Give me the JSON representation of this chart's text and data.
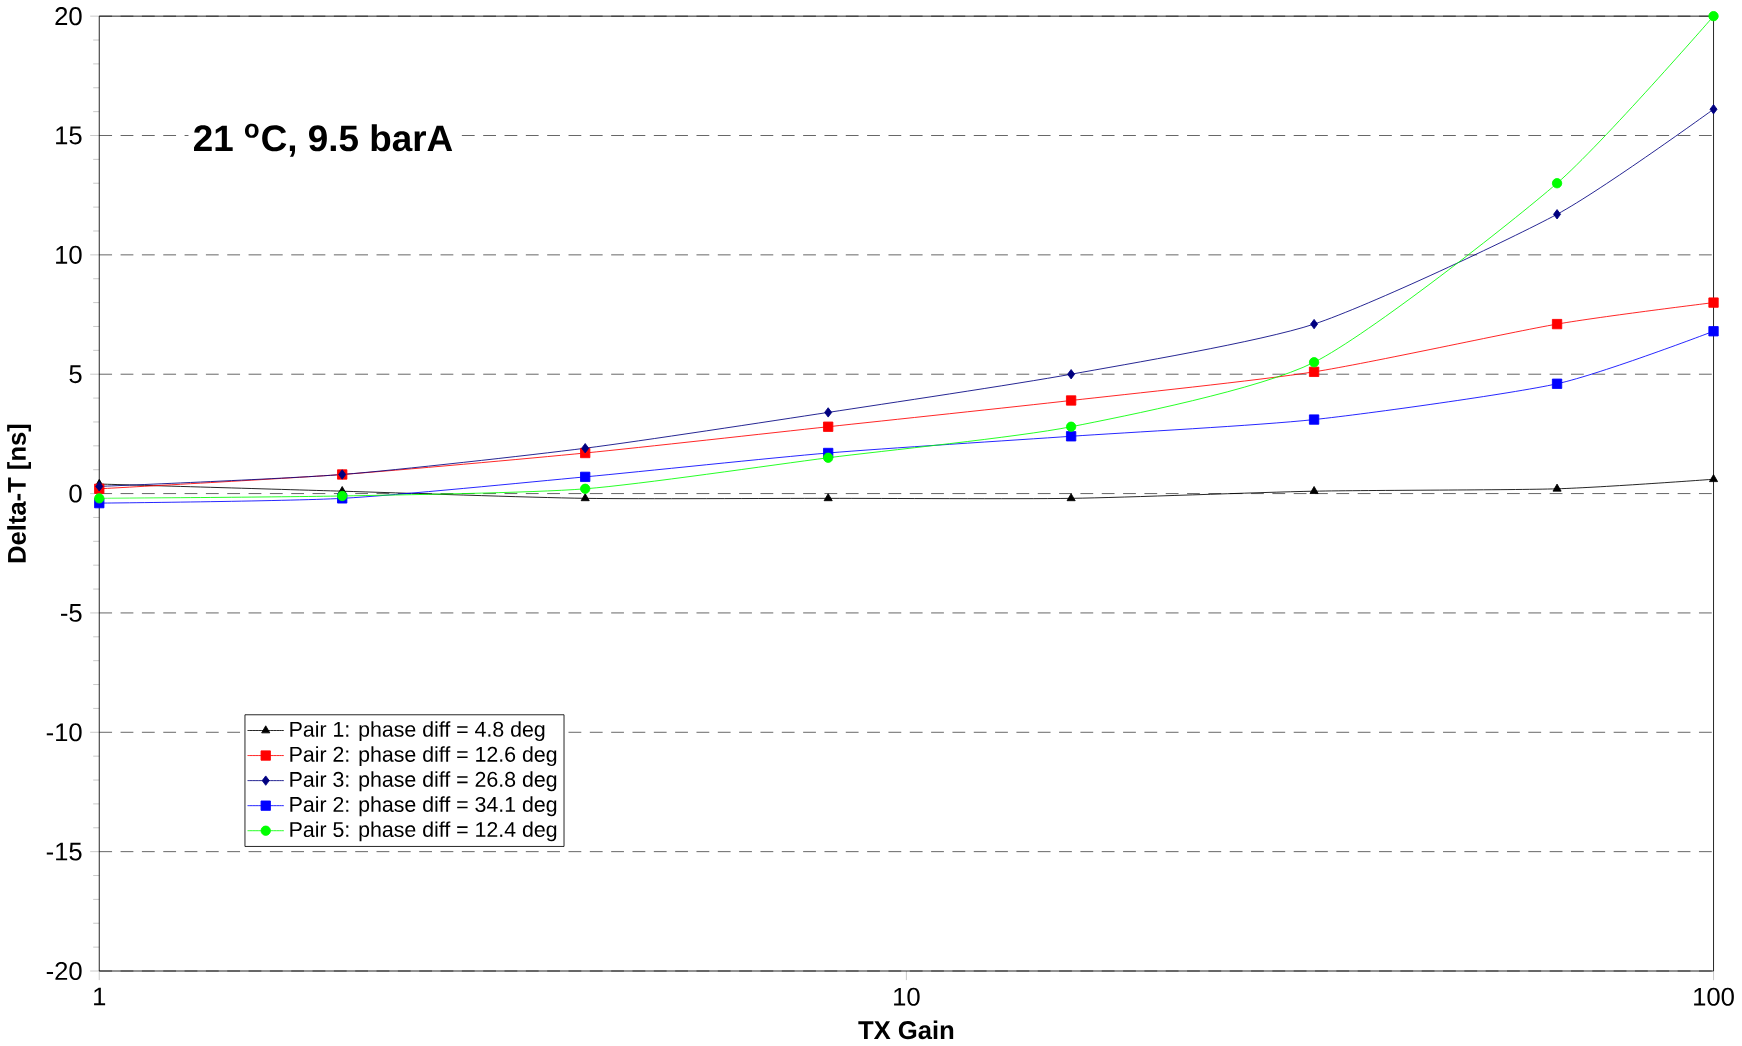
{
  "chart_data": {
    "type": "line",
    "xlabel": "TX Gain",
    "ylabel": "Delta-T [ns]",
    "annotations": [
      "**21 $^{o}$C,   9.5 barA**"
    ],
    "x": [
      1,
      2,
      4,
      8,
      16,
      32,
      64,
      100
    ],
    "log": "x",
    "xlim": [
      1,
      100
    ],
    "xticks": [
      1,
      10,
      100
    ],
    "ylim": [
      -20,
      20
    ],
    "yticks": [
      -20,
      -15,
      -10,
      -5,
      0,
      5,
      10,
      15,
      20
    ],
    "grid": "y",
    "legend": "bottom left",
    "series": [
      {
        "name": "Pair 1: phase diff =   4.8 deg",
        "color": "#000000",
        "marker": "triangle",
        "values": [
          0.4,
          0.1,
          -0.2,
          -0.2,
          -0.2,
          0.1,
          0.2,
          0.6
        ]
      },
      {
        "name": "Pair 2: phase diff = 12.6 deg",
        "color": "#ff0000",
        "marker": "square",
        "values": [
          0.2,
          0.8,
          1.7,
          2.8,
          3.9,
          5.1,
          7.1,
          8.0
        ]
      },
      {
        "name": "Pair 3: phase diff = 26.8 deg",
        "color": "#000080",
        "marker": "diamond",
        "values": [
          0.3,
          0.8,
          1.9,
          3.4,
          5.0,
          7.1,
          11.7,
          16.1
        ]
      },
      {
        "name": "Pair 2: phase diff = 34.1 deg",
        "color": "#0000ff",
        "marker": "square",
        "values": [
          -0.4,
          -0.2,
          0.7,
          1.7,
          2.4,
          3.1,
          4.6,
          6.8
        ]
      },
      {
        "name": "Pair 5: phase diff = 12.4 deg",
        "color": "#00ff00",
        "marker": "circle",
        "values": [
          -0.2,
          -0.1,
          0.2,
          1.5,
          2.8,
          5.5,
          13.0,
          20.0
        ]
      }
    ]
  }
}
